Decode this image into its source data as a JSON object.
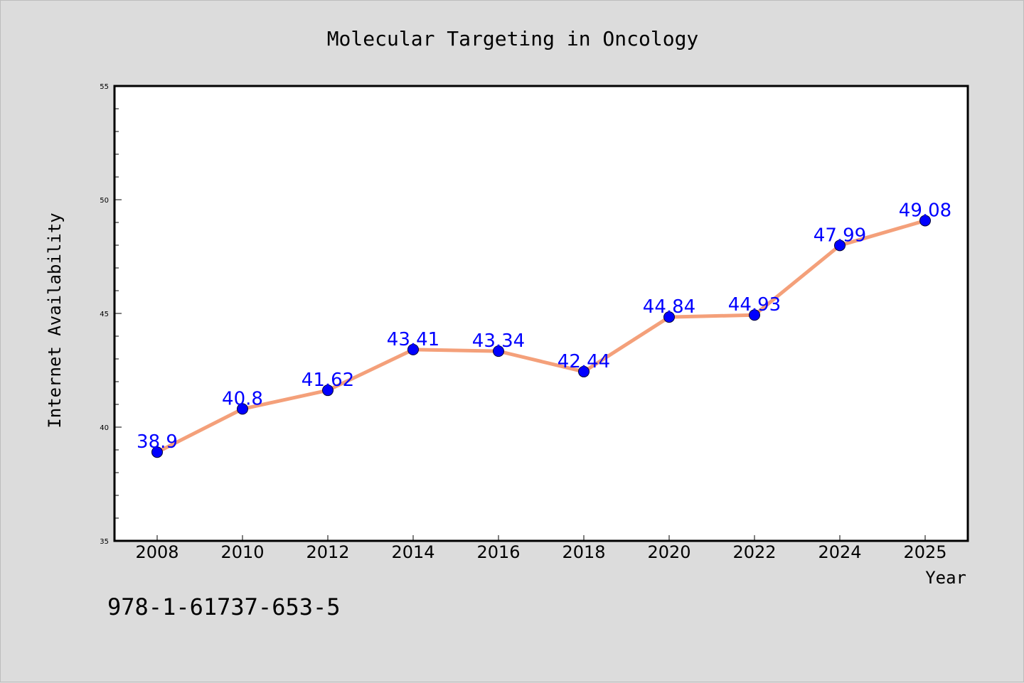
{
  "chart_data": {
    "type": "line",
    "title": "Molecular Targeting in Oncology",
    "xlabel": "Year",
    "ylabel": "Internet Availability",
    "x": [
      "2008",
      "2010",
      "2012",
      "2014",
      "2016",
      "2018",
      "2020",
      "2022",
      "2024",
      "2025"
    ],
    "values": [
      38.9,
      40.8,
      41.62,
      43.41,
      43.34,
      42.44,
      44.84,
      44.93,
      47.99,
      49.08
    ],
    "data_labels": [
      "38.9",
      "40.8",
      "41.62",
      "43.41",
      "43.34",
      "42.44",
      "44.84",
      "44.93",
      "47.99",
      "49.08"
    ],
    "ylim": [
      35,
      55
    ],
    "yticks": [
      "35",
      "40",
      "45",
      "50",
      "55"
    ],
    "line_color": "#f4a07a",
    "marker_color": "#0000ff",
    "label_color": "#0000ff",
    "grid": false,
    "legend": "none"
  },
  "footer": {
    "isbn": "978-1-61737-653-5"
  }
}
